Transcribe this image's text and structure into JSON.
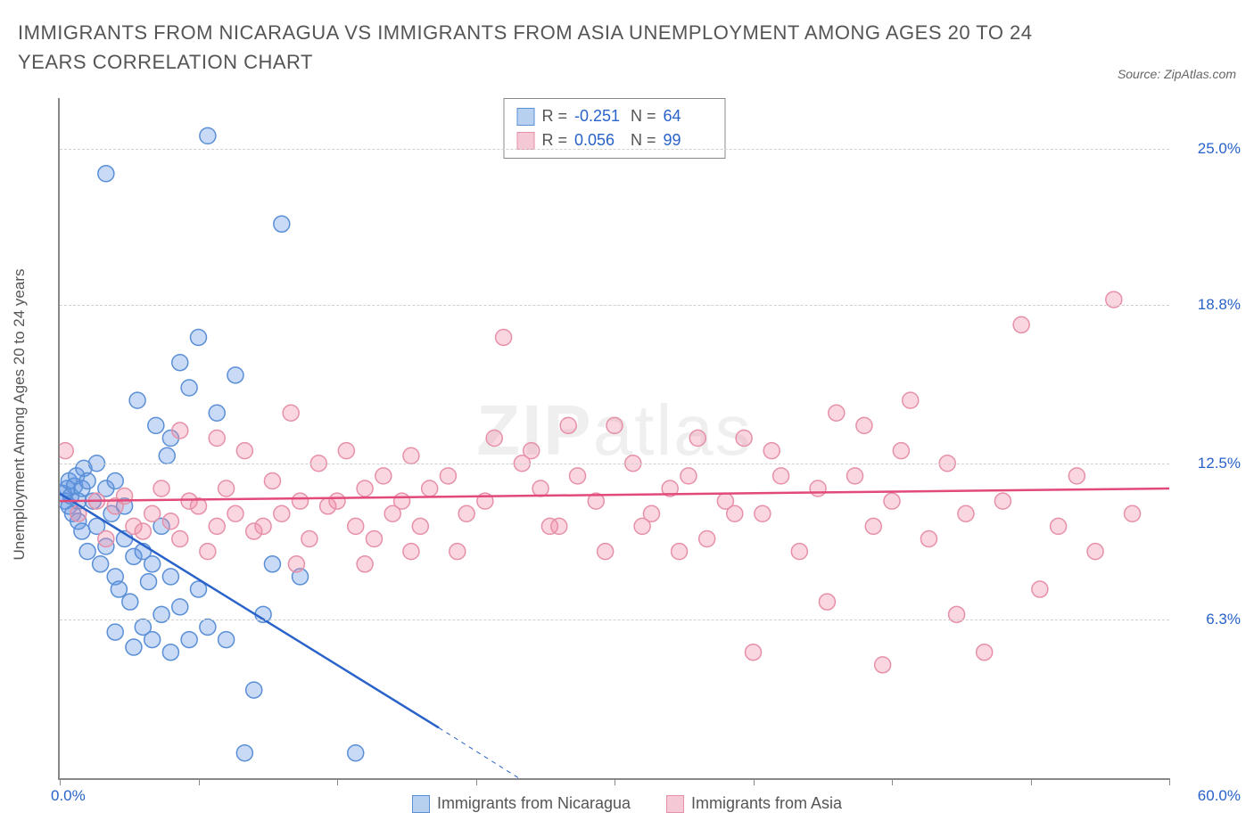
{
  "title": "IMMIGRANTS FROM NICARAGUA VS IMMIGRANTS FROM ASIA UNEMPLOYMENT AMONG AGES 20 TO 24 YEARS CORRELATION CHART",
  "source": "Source: ZipAtlas.com",
  "watermark_bold": "ZIP",
  "watermark_rest": "atlas",
  "chart": {
    "type": "scatter",
    "ylabel": "Unemployment Among Ages 20 to 24 years",
    "xlim": [
      0,
      60
    ],
    "ylim": [
      0,
      27
    ],
    "xaxis_min_label": "0.0%",
    "xaxis_max_label": "60.0%",
    "yticks": [
      {
        "v": 6.3,
        "label": "6.3%"
      },
      {
        "v": 12.5,
        "label": "12.5%"
      },
      {
        "v": 18.8,
        "label": "18.8%"
      },
      {
        "v": 25.0,
        "label": "25.0%"
      }
    ],
    "xtick_positions": [
      0,
      7.5,
      15,
      22.5,
      30,
      37.5,
      45,
      52.5,
      60
    ],
    "grid_color": "#d0d0d0",
    "background_color": "#ffffff",
    "series": [
      {
        "name": "Immigrants from Nicaragua",
        "color_fill": "rgba(96,150,230,0.35)",
        "color_stroke": "#5a8fd6",
        "swatch_fill": "#b8d0f0",
        "swatch_border": "#5a8fd6",
        "marker_radius": 9,
        "R": "-0.251",
        "N": "64",
        "trend": {
          "x1": 0,
          "y1": 11.3,
          "x2": 20.5,
          "y2": 2.0,
          "color": "#2962c9",
          "width": 2.5
        },
        "trend_ext": {
          "x1": 20.5,
          "y1": 2.0,
          "x2": 27,
          "y2": -1.0,
          "color": "#2962c9",
          "width": 1,
          "dash": "5,5"
        },
        "points": [
          [
            0.2,
            11.3
          ],
          [
            0.3,
            11.0
          ],
          [
            0.4,
            11.5
          ],
          [
            0.5,
            10.8
          ],
          [
            0.5,
            11.8
          ],
          [
            0.6,
            11.2
          ],
          [
            0.7,
            10.5
          ],
          [
            0.8,
            11.6
          ],
          [
            0.9,
            12.0
          ],
          [
            1.0,
            11.0
          ],
          [
            1.0,
            10.2
          ],
          [
            1.2,
            9.8
          ],
          [
            1.2,
            11.5
          ],
          [
            1.3,
            12.3
          ],
          [
            1.5,
            11.8
          ],
          [
            1.5,
            9.0
          ],
          [
            1.8,
            11.0
          ],
          [
            2.0,
            12.5
          ],
          [
            2.0,
            10.0
          ],
          [
            2.2,
            8.5
          ],
          [
            2.5,
            11.5
          ],
          [
            2.5,
            9.2
          ],
          [
            2.8,
            10.5
          ],
          [
            3.0,
            8.0
          ],
          [
            3.0,
            11.8
          ],
          [
            3.2,
            7.5
          ],
          [
            3.5,
            9.5
          ],
          [
            3.5,
            10.8
          ],
          [
            3.8,
            7.0
          ],
          [
            4.0,
            8.8
          ],
          [
            4.2,
            15.0
          ],
          [
            4.5,
            9.0
          ],
          [
            4.5,
            6.0
          ],
          [
            4.8,
            7.8
          ],
          [
            5.0,
            5.5
          ],
          [
            5.0,
            8.5
          ],
          [
            5.2,
            14.0
          ],
          [
            5.5,
            6.5
          ],
          [
            5.5,
            10.0
          ],
          [
            5.8,
            12.8
          ],
          [
            6.0,
            5.0
          ],
          [
            6.0,
            8.0
          ],
          [
            6.5,
            16.5
          ],
          [
            6.5,
            6.8
          ],
          [
            7.0,
            15.5
          ],
          [
            7.0,
            5.5
          ],
          [
            7.5,
            17.5
          ],
          [
            7.5,
            7.5
          ],
          [
            8.0,
            25.5
          ],
          [
            8.0,
            6.0
          ],
          [
            8.5,
            14.5
          ],
          [
            2.5,
            24.0
          ],
          [
            9.0,
            5.5
          ],
          [
            10.0,
            1.0
          ],
          [
            10.5,
            3.5
          ],
          [
            11.0,
            6.5
          ],
          [
            12.0,
            22.0
          ],
          [
            13.0,
            8.0
          ],
          [
            9.5,
            16.0
          ],
          [
            4.0,
            5.2
          ],
          [
            6.0,
            13.5
          ],
          [
            3.0,
            5.8
          ],
          [
            16.0,
            1.0
          ],
          [
            11.5,
            8.5
          ]
        ]
      },
      {
        "name": "Immigrants from Asia",
        "color_fill": "rgba(240,140,165,0.35)",
        "color_stroke": "#e690a8",
        "swatch_fill": "#f5c8d5",
        "swatch_border": "#e690a8",
        "marker_radius": 9,
        "R": "0.056",
        "N": "99",
        "trend": {
          "x1": 0,
          "y1": 11.0,
          "x2": 60,
          "y2": 11.5,
          "color": "#e24a7a",
          "width": 2.5
        },
        "points": [
          [
            0.3,
            13.0
          ],
          [
            1.0,
            10.5
          ],
          [
            2.0,
            11.0
          ],
          [
            2.5,
            9.5
          ],
          [
            3.0,
            10.8
          ],
          [
            3.5,
            11.2
          ],
          [
            4.0,
            10.0
          ],
          [
            4.5,
            9.8
          ],
          [
            5.0,
            10.5
          ],
          [
            5.5,
            11.5
          ],
          [
            6.0,
            10.2
          ],
          [
            6.5,
            9.5
          ],
          [
            7.0,
            11.0
          ],
          [
            7.5,
            10.8
          ],
          [
            8.0,
            9.0
          ],
          [
            8.5,
            10.0
          ],
          [
            9.0,
            11.5
          ],
          [
            9.5,
            10.5
          ],
          [
            10.0,
            13.0
          ],
          [
            10.5,
            9.8
          ],
          [
            11.0,
            10.0
          ],
          [
            11.5,
            11.8
          ],
          [
            12.0,
            10.5
          ],
          [
            12.5,
            14.5
          ],
          [
            13.0,
            11.0
          ],
          [
            13.5,
            9.5
          ],
          [
            14.0,
            12.5
          ],
          [
            14.5,
            10.8
          ],
          [
            15.0,
            11.0
          ],
          [
            15.5,
            13.0
          ],
          [
            16.0,
            10.0
          ],
          [
            16.5,
            11.5
          ],
          [
            17.0,
            9.5
          ],
          [
            17.5,
            12.0
          ],
          [
            18.0,
            10.5
          ],
          [
            18.5,
            11.0
          ],
          [
            19.0,
            12.8
          ],
          [
            19.5,
            10.0
          ],
          [
            20.0,
            11.5
          ],
          [
            21.0,
            12.0
          ],
          [
            22.0,
            10.5
          ],
          [
            23.0,
            11.0
          ],
          [
            24.0,
            17.5
          ],
          [
            25.0,
            12.5
          ],
          [
            26.0,
            11.5
          ],
          [
            27.0,
            10.0
          ],
          [
            28.0,
            12.0
          ],
          [
            29.0,
            11.0
          ],
          [
            30.0,
            14.0
          ],
          [
            31.0,
            12.5
          ],
          [
            32.0,
            10.5
          ],
          [
            33.0,
            11.5
          ],
          [
            34.0,
            12.0
          ],
          [
            35.0,
            9.5
          ],
          [
            36.0,
            11.0
          ],
          [
            37.0,
            13.5
          ],
          [
            38.0,
            10.5
          ],
          [
            39.0,
            12.0
          ],
          [
            40.0,
            9.0
          ],
          [
            41.0,
            11.5
          ],
          [
            42.0,
            14.5
          ],
          [
            43.0,
            12.0
          ],
          [
            44.0,
            10.0
          ],
          [
            45.0,
            11.0
          ],
          [
            46.0,
            15.0
          ],
          [
            47.0,
            9.5
          ],
          [
            48.0,
            12.5
          ],
          [
            49.0,
            10.5
          ],
          [
            50.0,
            5.0
          ],
          [
            51.0,
            11.0
          ],
          [
            52.0,
            18.0
          ],
          [
            53.0,
            7.5
          ],
          [
            54.0,
            10.0
          ],
          [
            55.0,
            12.0
          ],
          [
            56.0,
            9.0
          ],
          [
            57.0,
            19.0
          ],
          [
            58.0,
            10.5
          ],
          [
            44.5,
            4.5
          ],
          [
            37.5,
            5.0
          ],
          [
            41.5,
            7.0
          ],
          [
            48.5,
            6.5
          ],
          [
            29.5,
            9.0
          ],
          [
            33.5,
            9.0
          ],
          [
            25.5,
            13.0
          ],
          [
            21.5,
            9.0
          ],
          [
            19.0,
            9.0
          ],
          [
            16.5,
            8.5
          ],
          [
            12.8,
            8.5
          ],
          [
            8.5,
            13.5
          ],
          [
            6.5,
            13.8
          ],
          [
            43.5,
            14.0
          ],
          [
            38.5,
            13.0
          ],
          [
            34.5,
            13.5
          ],
          [
            27.5,
            14.0
          ],
          [
            23.5,
            13.5
          ],
          [
            26.5,
            10.0
          ],
          [
            31.5,
            10.0
          ],
          [
            36.5,
            10.5
          ],
          [
            45.5,
            13.0
          ]
        ]
      }
    ]
  },
  "legend_box": {
    "rows": [
      {
        "swatch_fill": "#b8d0f0",
        "swatch_border": "#5a8fd6",
        "R": "-0.251",
        "N": "64"
      },
      {
        "swatch_fill": "#f5c8d5",
        "swatch_border": "#e690a8",
        "R": "0.056",
        "N": "99"
      }
    ]
  },
  "bottom_legend": [
    {
      "swatch_fill": "#b8d0f0",
      "swatch_border": "#5a8fd6",
      "label": "Immigrants from Nicaragua"
    },
    {
      "swatch_fill": "#f5c8d5",
      "swatch_border": "#e690a8",
      "label": "Immigrants from Asia"
    }
  ]
}
